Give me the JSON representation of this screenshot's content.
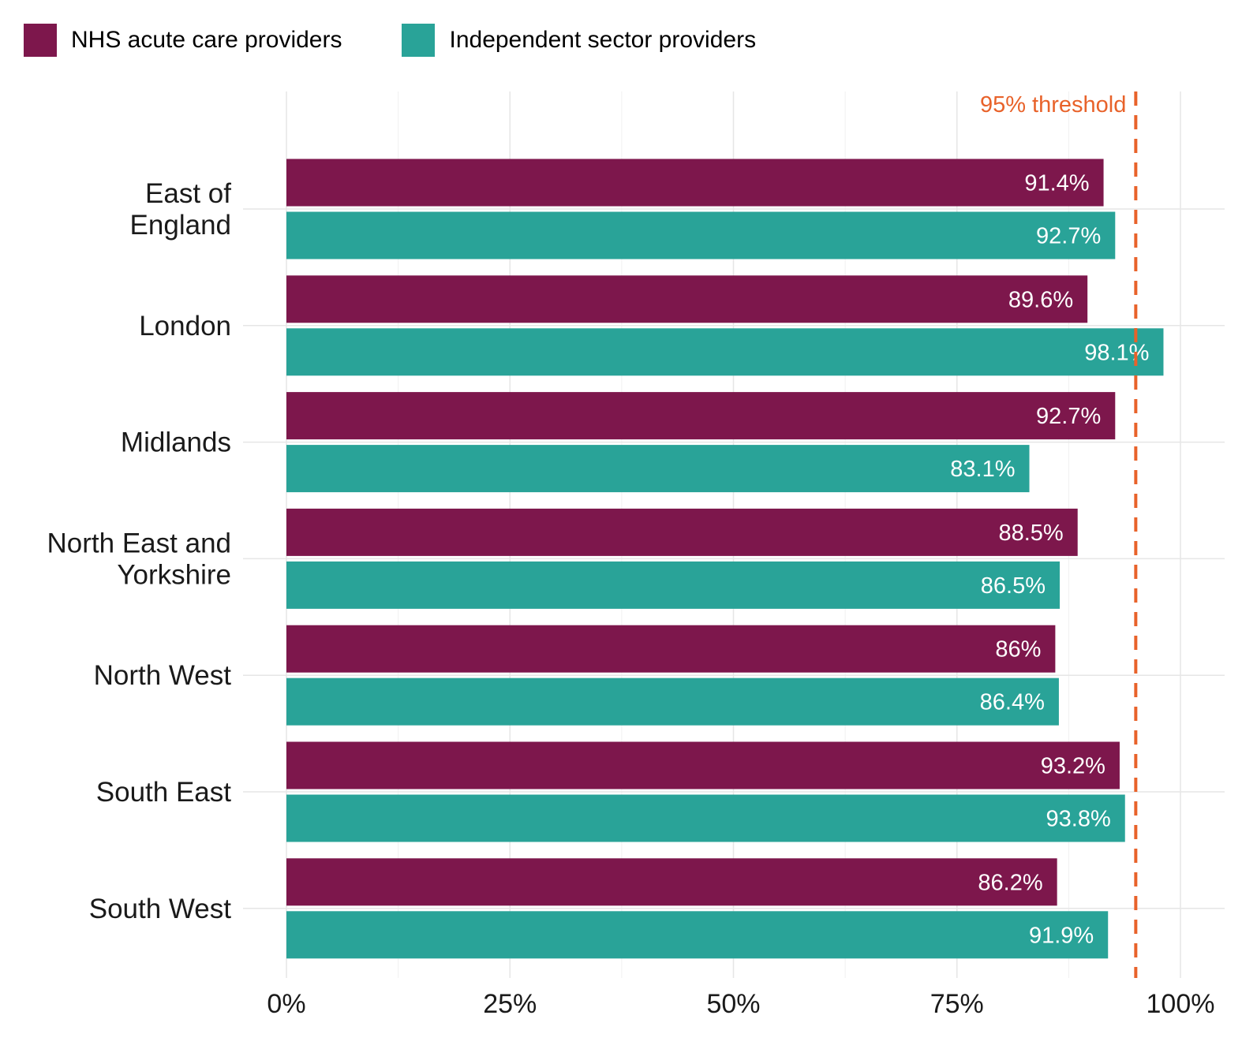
{
  "chart_data": {
    "type": "bar",
    "orientation": "horizontal",
    "title": "",
    "xlabel": "",
    "ylabel": "",
    "categories": [
      "East of England",
      "London",
      "Midlands",
      "North East and Yorkshire",
      "North West",
      "South East",
      "South West"
    ],
    "category_lines": [
      [
        "East of",
        "England"
      ],
      [
        "London"
      ],
      [
        "Midlands"
      ],
      [
        "North East and",
        "Yorkshire"
      ],
      [
        "North West"
      ],
      [
        "South East"
      ],
      [
        "South West"
      ]
    ],
    "series": [
      {
        "name": "NHS acute care providers",
        "color": "#7d174c",
        "values": [
          91.4,
          89.6,
          92.7,
          88.5,
          86,
          93.2,
          86.2
        ],
        "labels": [
          "91.4%",
          "89.6%",
          "92.7%",
          "88.5%",
          "86%",
          "93.2%",
          "86.2%"
        ]
      },
      {
        "name": "Independent sector providers",
        "color": "#29a398",
        "values": [
          92.7,
          98.1,
          83.1,
          86.5,
          86.4,
          93.8,
          91.9
        ],
        "labels": [
          "92.7%",
          "98.1%",
          "83.1%",
          "86.5%",
          "86.4%",
          "93.8%",
          "91.9%"
        ]
      }
    ],
    "xlim": [
      0,
      100
    ],
    "xticks": [
      0,
      25,
      50,
      75,
      100
    ],
    "xtick_labels": [
      "0%",
      "25%",
      "50%",
      "75%",
      "100%"
    ],
    "threshold": {
      "value": 95,
      "label": "95% threshold",
      "color": "#e8622a",
      "style": "dashed"
    },
    "grid": true,
    "legend": "top-left"
  }
}
